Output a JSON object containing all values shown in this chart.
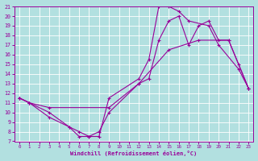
{
  "xlabel": "Windchill (Refroidissement éolien,°C)",
  "background_color": "#b2e0e0",
  "grid_color": "#ffffff",
  "line_color": "#990099",
  "xlim": [
    -0.5,
    23.5
  ],
  "ylim": [
    7,
    21
  ],
  "xticks": [
    0,
    1,
    2,
    3,
    4,
    5,
    6,
    7,
    8,
    9,
    10,
    11,
    12,
    13,
    14,
    15,
    16,
    17,
    18,
    19,
    20,
    21,
    22,
    23
  ],
  "yticks": [
    7,
    8,
    9,
    10,
    11,
    12,
    13,
    14,
    15,
    16,
    17,
    18,
    19,
    20,
    21
  ],
  "line1_x": [
    0,
    1,
    3,
    5,
    6,
    7,
    8,
    9,
    12,
    13,
    14,
    15,
    16,
    17,
    19,
    20,
    22,
    23
  ],
  "line1_y": [
    11.5,
    11.0,
    9.5,
    8.5,
    7.5,
    7.5,
    7.5,
    11.5,
    13.5,
    15.5,
    21.0,
    21.0,
    20.5,
    19.5,
    19.0,
    17.0,
    14.5,
    12.5
  ],
  "line2_x": [
    0,
    1,
    3,
    5,
    6,
    7,
    8,
    9,
    12,
    13,
    14,
    15,
    16,
    17,
    18,
    19,
    20,
    21,
    22,
    23
  ],
  "line2_y": [
    11.5,
    11.0,
    10.0,
    8.5,
    8.0,
    7.5,
    8.0,
    10.0,
    13.0,
    13.5,
    17.5,
    19.5,
    20.0,
    17.0,
    19.0,
    19.5,
    17.5,
    17.5,
    15.0,
    12.5
  ],
  "line3_x": [
    0,
    1,
    3,
    9,
    12,
    15,
    18,
    21,
    23
  ],
  "line3_y": [
    11.5,
    11.0,
    10.5,
    10.5,
    13.0,
    16.5,
    17.5,
    17.5,
    12.5
  ]
}
